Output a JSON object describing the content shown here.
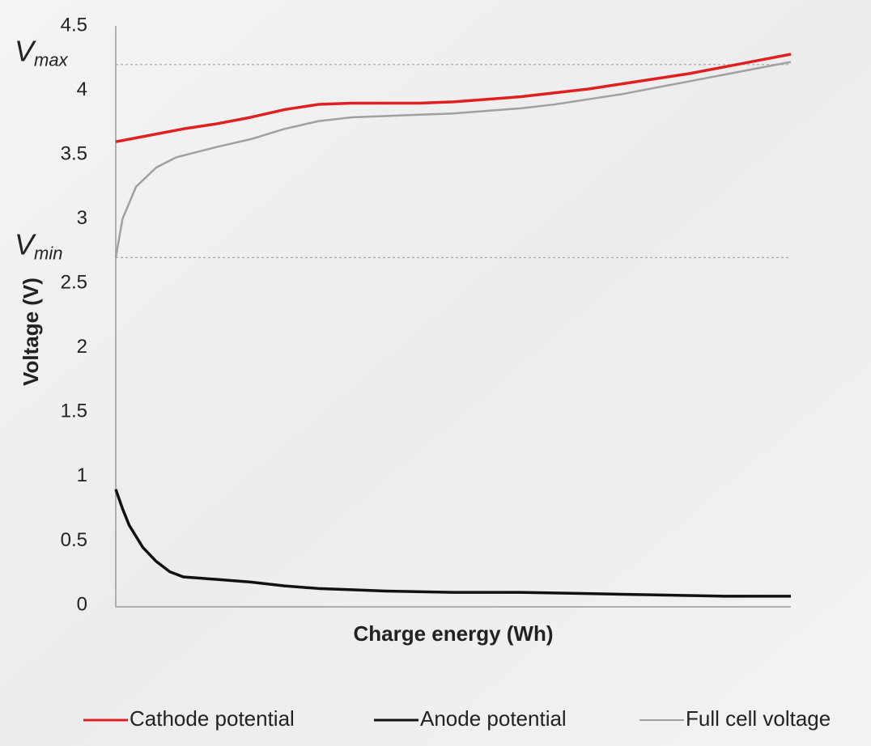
{
  "chart_data": {
    "type": "line",
    "xlabel": "Charge energy (Wh)",
    "ylabel": "Voltage (V)",
    "xlim": [
      0,
      100
    ],
    "ylim": [
      0,
      4.5
    ],
    "yticks": [
      0,
      0.5,
      1,
      1.5,
      2,
      2.5,
      3,
      3.5,
      4,
      4.5
    ],
    "reference_lines": [
      {
        "label": "V",
        "subscript": "max",
        "value": 4.2
      },
      {
        "label": "V",
        "subscript": "min",
        "value": 2.7
      }
    ],
    "series": [
      {
        "name": "Cathode potential",
        "color": "#e02020",
        "x": [
          0,
          5,
          10,
          15,
          20,
          25,
          30,
          35,
          40,
          45,
          50,
          55,
          60,
          65,
          70,
          75,
          80,
          85,
          90,
          95,
          100
        ],
        "values": [
          3.6,
          3.65,
          3.7,
          3.74,
          3.79,
          3.85,
          3.89,
          3.9,
          3.9,
          3.9,
          3.91,
          3.93,
          3.95,
          3.98,
          4.01,
          4.05,
          4.09,
          4.13,
          4.18,
          4.23,
          4.28
        ]
      },
      {
        "name": "Anode potential",
        "color": "#111111",
        "x": [
          0,
          1,
          2,
          4,
          6,
          8,
          10,
          15,
          20,
          25,
          30,
          35,
          40,
          50,
          60,
          70,
          80,
          90,
          100
        ],
        "values": [
          0.9,
          0.75,
          0.62,
          0.45,
          0.34,
          0.26,
          0.22,
          0.2,
          0.18,
          0.15,
          0.13,
          0.12,
          0.11,
          0.1,
          0.1,
          0.09,
          0.08,
          0.07,
          0.07
        ]
      },
      {
        "name": "Full cell voltage",
        "color": "#a0a0a0",
        "x": [
          0,
          1,
          3,
          6,
          9,
          12,
          15,
          20,
          25,
          30,
          35,
          40,
          45,
          50,
          55,
          60,
          65,
          70,
          75,
          80,
          85,
          90,
          95,
          100
        ],
        "values": [
          2.7,
          3.0,
          3.25,
          3.4,
          3.48,
          3.52,
          3.56,
          3.62,
          3.7,
          3.76,
          3.79,
          3.8,
          3.81,
          3.82,
          3.84,
          3.86,
          3.89,
          3.93,
          3.97,
          4.02,
          4.07,
          4.12,
          4.17,
          4.22
        ]
      }
    ]
  }
}
